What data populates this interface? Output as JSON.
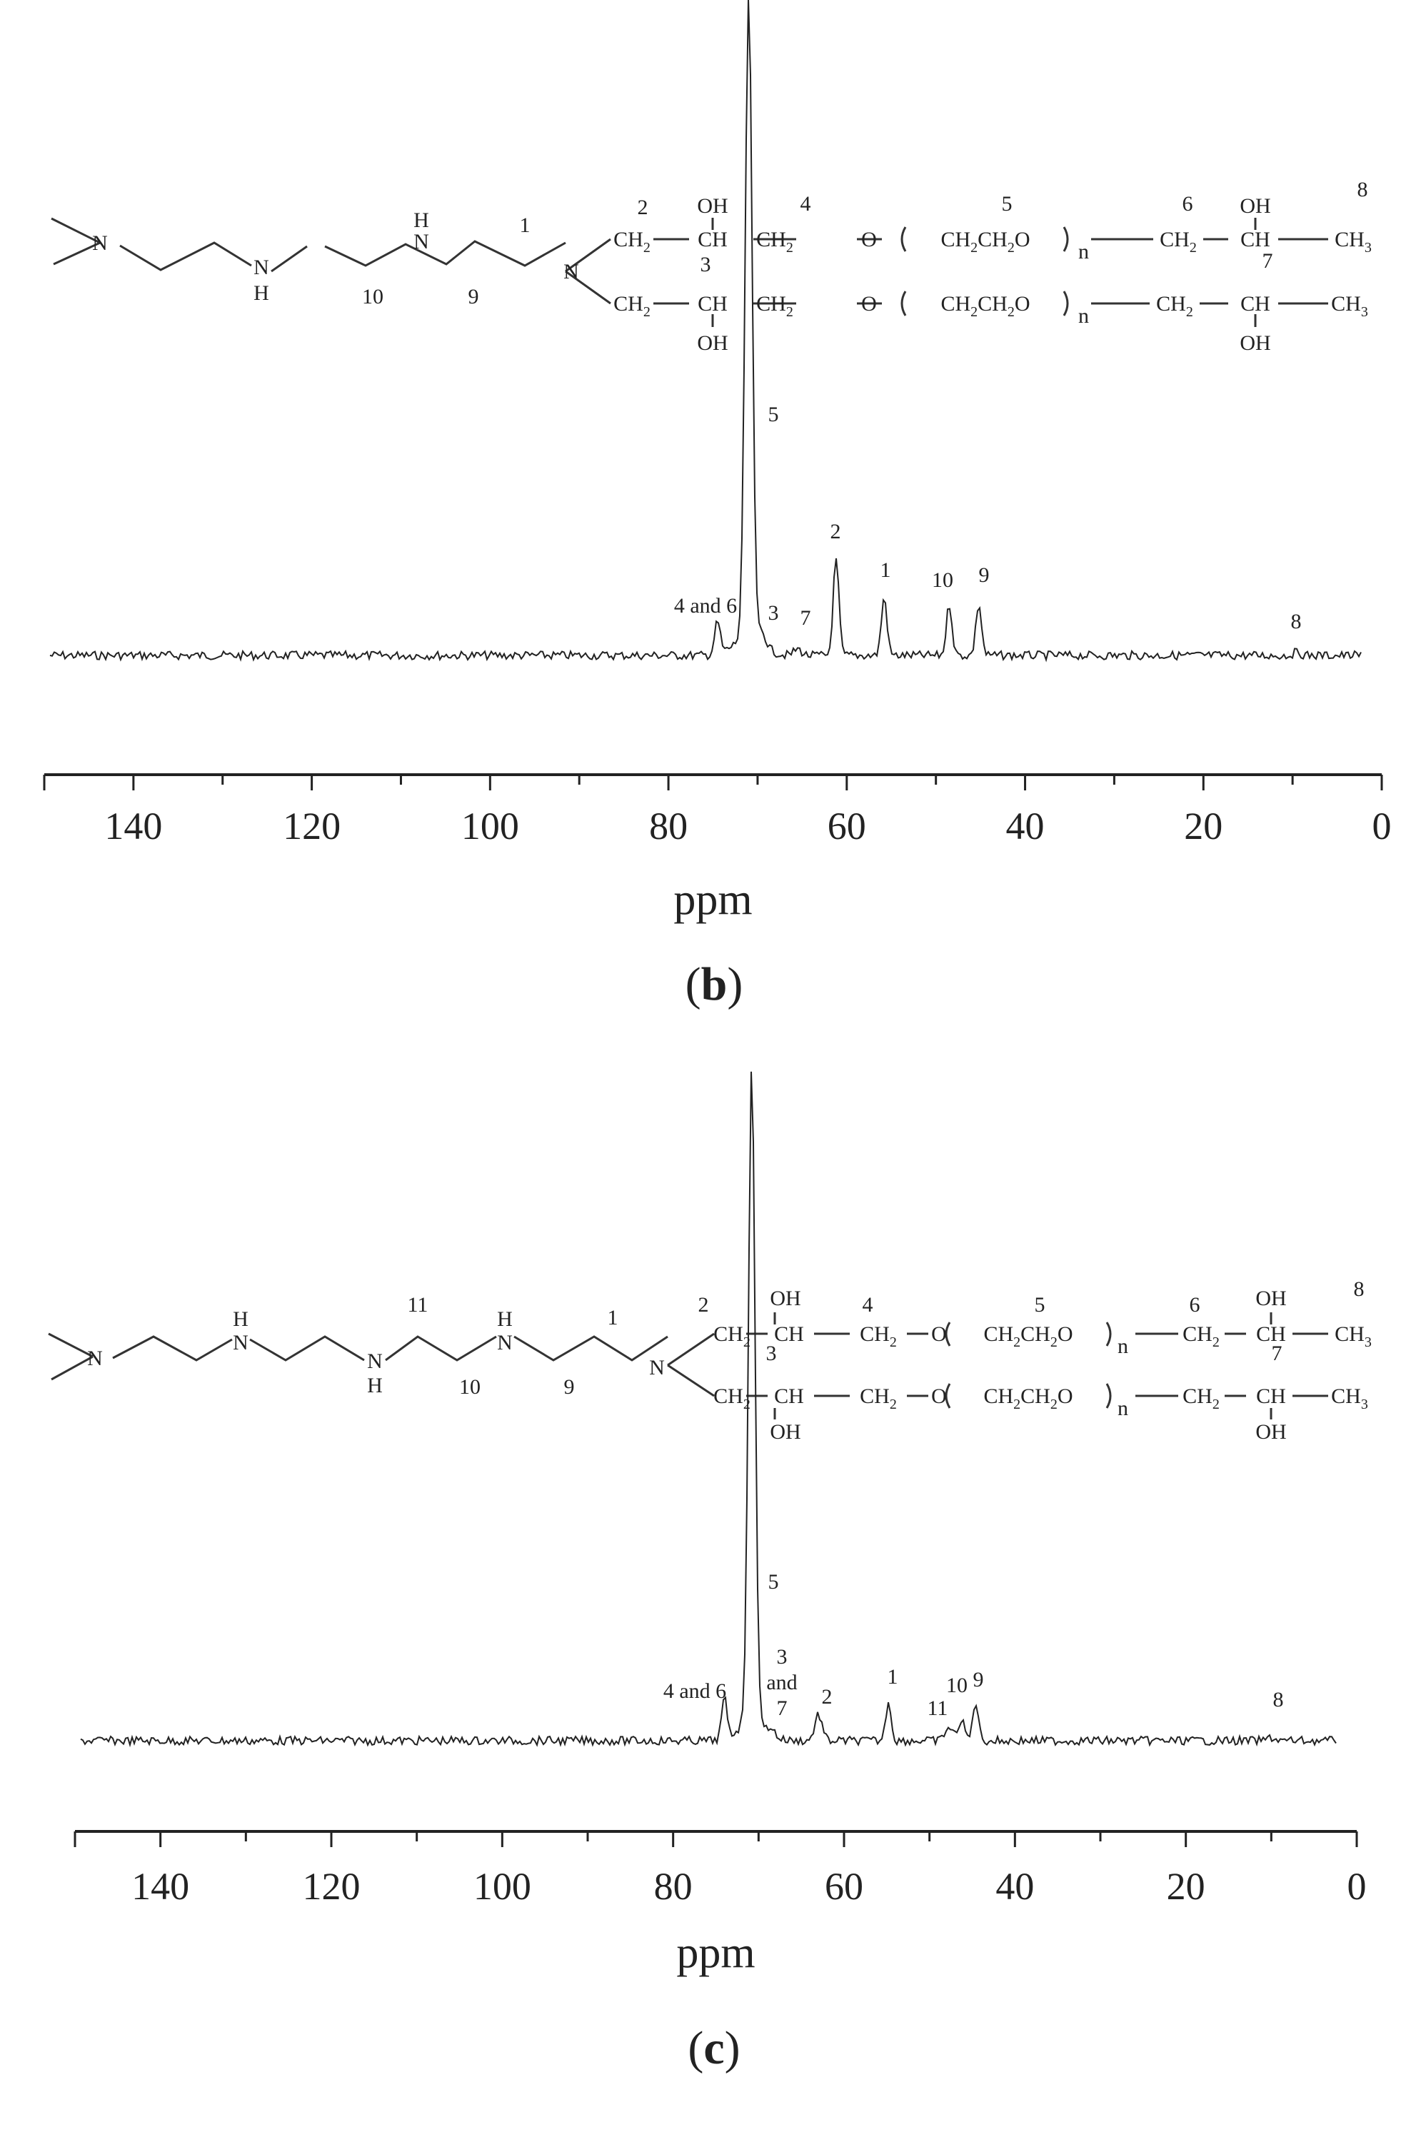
{
  "panels": [
    {
      "id": "b",
      "panel_label": "b",
      "structure": {
        "pos_labels": [
          "2",
          "3",
          "4",
          "5",
          "6",
          "7",
          "8",
          "1",
          "9",
          "10"
        ],
        "oh_labels": [
          "OH",
          "OH",
          "OH",
          "OH"
        ],
        "n_labels": [
          "N",
          "N",
          "N",
          "N"
        ],
        "h_labels": [
          "H",
          "H"
        ],
        "n_index": "n",
        "ch_text": "CH",
        "ch2_text": "CH",
        "ch3_text": "CH",
        "ch2_sub": "2",
        "ch3_sub": "3",
        "peg_text": "CH",
        "o_text": "O"
      }
    },
    {
      "id": "c",
      "panel_label": "c",
      "structure": {
        "pos_labels": [
          "2",
          "3",
          "4",
          "5",
          "6",
          "7",
          "8",
          "1",
          "9",
          "10",
          "11"
        ],
        "oh_labels": [
          "OH",
          "OH",
          "OH",
          "OH"
        ],
        "n_labels": [
          "N",
          "N",
          "N",
          "N",
          "N"
        ],
        "h_labels": [
          "H",
          "H",
          "H"
        ],
        "n_index": "n",
        "ch_text": "CH",
        "ch2_text": "CH",
        "ch3_text": "CH",
        "ch2_sub": "2",
        "ch3_sub": "3",
        "peg_text": "CH",
        "o_text": "O"
      }
    }
  ],
  "chart_data": [
    {
      "type": "line",
      "panel": "b",
      "xlabel": "ppm",
      "xlim": [
        150,
        0
      ],
      "x_reversed": true,
      "xticks": [
        140,
        120,
        100,
        80,
        60,
        40,
        20,
        0
      ],
      "baseline_level": 0,
      "peaks": [
        {
          "x": 71.0,
          "height": 1.0,
          "label": "5"
        },
        {
          "x": 74.5,
          "height": 0.05,
          "label": "4 and 6"
        },
        {
          "x": 69.5,
          "height": 0.02,
          "label": "3"
        },
        {
          "x": 65.5,
          "height": 0.01,
          "label": "7"
        },
        {
          "x": 61.2,
          "height": 0.15,
          "label": "2"
        },
        {
          "x": 55.8,
          "height": 0.09,
          "label": "1"
        },
        {
          "x": 48.5,
          "height": 0.08,
          "label": "10"
        },
        {
          "x": 45.2,
          "height": 0.08,
          "label": "9"
        },
        {
          "x": 9.5,
          "height": 0.005,
          "label": "8"
        }
      ]
    },
    {
      "type": "line",
      "panel": "c",
      "xlabel": "ppm",
      "xlim": [
        150,
        0
      ],
      "x_reversed": true,
      "xticks": [
        140,
        120,
        100,
        80,
        60,
        40,
        20,
        0
      ],
      "baseline_level": 0,
      "peaks": [
        {
          "x": 70.8,
          "height": 1.0,
          "label": "5"
        },
        {
          "x": 74.0,
          "height": 0.06,
          "label": "4 and 6"
        },
        {
          "x": 68.5,
          "height": 0.01,
          "label": "3 and 7"
        },
        {
          "x": 63.0,
          "height": 0.04,
          "label": "2"
        },
        {
          "x": 54.8,
          "height": 0.06,
          "label": "1"
        },
        {
          "x": 47.8,
          "height": 0.02,
          "label": "11"
        },
        {
          "x": 46.3,
          "height": 0.03,
          "label": "10"
        },
        {
          "x": 44.6,
          "height": 0.06,
          "label": "9"
        },
        {
          "x": 10.0,
          "height": 0.005,
          "label": "8"
        }
      ]
    }
  ]
}
